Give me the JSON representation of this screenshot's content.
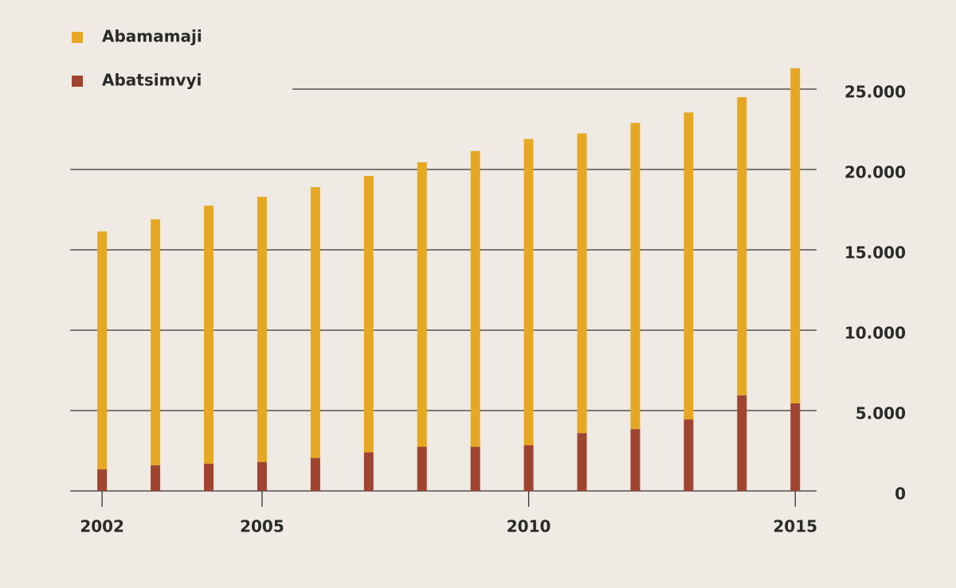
{
  "chart_data": {
    "type": "bar",
    "stacked": true,
    "x": [
      2002,
      2003,
      2004,
      2005,
      2006,
      2007,
      2008,
      2009,
      2010,
      2011,
      2012,
      2013,
      2014,
      2015
    ],
    "series": [
      {
        "name": "Abatsimvyi",
        "color": "#9e4430",
        "values": [
          1350,
          1600,
          1700,
          1800,
          2050,
          2400,
          2750,
          2750,
          2850,
          3600,
          3850,
          4450,
          5950,
          5450
        ]
      },
      {
        "name": "Abamamaji",
        "color": "#e6a823",
        "values": [
          14800,
          15300,
          16050,
          16500,
          16850,
          17200,
          17700,
          18400,
          19050,
          18650,
          19050,
          19100,
          18550,
          20850
        ]
      }
    ],
    "legend_order": [
      1,
      0
    ],
    "xlim": [
      2001.4,
      2015.4
    ],
    "xticks": [
      2002,
      2005,
      2010,
      2015
    ],
    "ylim": [
      0,
      26500
    ],
    "yticks": [
      0,
      {
        "value": 5000,
        "label": "5.000"
      },
      {
        "value": 10000,
        "label": "10.000"
      },
      {
        "value": 15000,
        "label": "15.000"
      },
      {
        "value": 20000,
        "label": "20.000"
      },
      {
        "value": 25000,
        "label": "25.000"
      }
    ],
    "grid": true,
    "legend": "upper left",
    "yaxis_side": "right"
  }
}
